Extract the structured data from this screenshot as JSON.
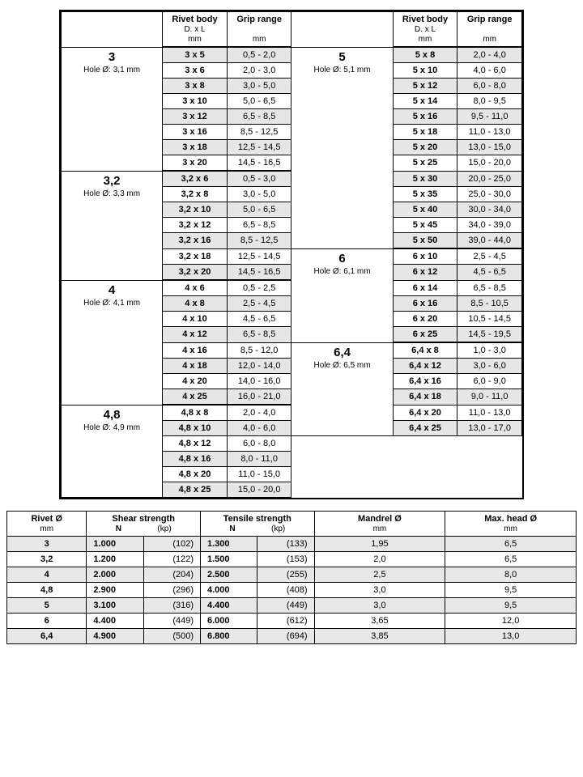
{
  "colors": {
    "bg": "#ffffff",
    "shade": "#e6e6e6",
    "border": "#000000",
    "text": "#000000"
  },
  "top": {
    "headers": {
      "rivet_body": "Rivet body",
      "rivet_body_sub1": "D. x L",
      "rivet_body_sub2": "mm",
      "grip": "Grip range",
      "grip_sub": "mm"
    },
    "right_blank": "",
    "left": [
      {
        "title": "3",
        "sub": "Hole Ø: 3,1 mm",
        "rows": [
          {
            "rb": "3 x 5",
            "gr": "0,5 - 2,0",
            "s": 1
          },
          {
            "rb": "3 x 6",
            "gr": "2,0 - 3,0",
            "s": 0
          },
          {
            "rb": "3 x 8",
            "gr": "3,0 - 5,0",
            "s": 1
          },
          {
            "rb": "3 x 10",
            "gr": "5,0 - 6,5",
            "s": 0
          },
          {
            "rb": "3 x 12",
            "gr": "6,5 - 8,5",
            "s": 1
          },
          {
            "rb": "3 x 16",
            "gr": "8,5 - 12,5",
            "s": 0
          },
          {
            "rb": "3 x 18",
            "gr": "12,5 - 14,5",
            "s": 1
          },
          {
            "rb": "3 x 20",
            "gr": "14,5 - 16,5",
            "s": 0
          }
        ]
      },
      {
        "title": "3,2",
        "sub": "Hole Ø: 3,3 mm",
        "rows": [
          {
            "rb": "3,2 x 6",
            "gr": "0,5 - 3,0",
            "s": 1
          },
          {
            "rb": "3,2 x 8",
            "gr": "3,0 - 5,0",
            "s": 0
          },
          {
            "rb": "3,2 x 10",
            "gr": "5,0 - 6,5",
            "s": 1
          },
          {
            "rb": "3,2 x 12",
            "gr": "6,5 - 8,5",
            "s": 0
          },
          {
            "rb": "3,2 x 16",
            "gr": "8,5 - 12,5",
            "s": 1
          },
          {
            "rb": "3,2 x 18",
            "gr": "12,5 - 14,5",
            "s": 0
          },
          {
            "rb": "3,2 x 20",
            "gr": "14,5 - 16,5",
            "s": 1
          }
        ]
      },
      {
        "title": "4",
        "sub": "Hole Ø: 4,1 mm",
        "rows": [
          {
            "rb": "4 x 6",
            "gr": "0,5 - 2,5",
            "s": 0
          },
          {
            "rb": "4 x 8",
            "gr": "2,5 - 4,5",
            "s": 1
          },
          {
            "rb": "4 x 10",
            "gr": "4,5 - 6,5",
            "s": 0
          },
          {
            "rb": "4 x 12",
            "gr": "6,5 - 8,5",
            "s": 1
          },
          {
            "rb": "4 x 16",
            "gr": "8,5 - 12,0",
            "s": 0
          },
          {
            "rb": "4 x 18",
            "gr": "12,0 - 14,0",
            "s": 1
          },
          {
            "rb": "4 x 20",
            "gr": "14,0 - 16,0",
            "s": 0
          },
          {
            "rb": "4 x 25",
            "gr": "16,0 - 21,0",
            "s": 1
          }
        ]
      },
      {
        "title": "4,8",
        "sub": "Hole Ø: 4,9 mm",
        "rows": [
          {
            "rb": "4,8 x 8",
            "gr": "2,0 - 4,0",
            "s": 0
          },
          {
            "rb": "4,8 x 10",
            "gr": "4,0 - 6,0",
            "s": 1
          },
          {
            "rb": "4,8 x 12",
            "gr": "6,0 - 8,0",
            "s": 0
          },
          {
            "rb": "4,8 x 16",
            "gr": "8,0 - 11,0",
            "s": 1
          },
          {
            "rb": "4,8 x 20",
            "gr": "11,0 - 15,0",
            "s": 0
          },
          {
            "rb": "4,8 x 25",
            "gr": "15,0 - 20,0",
            "s": 1
          }
        ]
      }
    ],
    "right": [
      {
        "title": "5",
        "sub": "Hole Ø: 5,1 mm",
        "rows": [
          {
            "rb": "5 x 8",
            "gr": "2,0 - 4,0",
            "s": 1
          },
          {
            "rb": "5 x 10",
            "gr": "4,0 - 6,0",
            "s": 0
          },
          {
            "rb": "5 x 12",
            "gr": "6,0 - 8,0",
            "s": 1
          },
          {
            "rb": "5 x 14",
            "gr": "8,0 - 9,5",
            "s": 0
          },
          {
            "rb": "5 x 16",
            "gr": "9,5 - 11,0",
            "s": 1
          },
          {
            "rb": "5 x 18",
            "gr": "11,0 - 13,0",
            "s": 0
          },
          {
            "rb": "5 x 20",
            "gr": "13,0 - 15,0",
            "s": 1
          },
          {
            "rb": "5 x 25",
            "gr": "15,0 - 20,0",
            "s": 0
          },
          {
            "rb": "5 x 30",
            "gr": "20,0 - 25,0",
            "s": 1
          },
          {
            "rb": "5 x 35",
            "gr": "25,0 - 30,0",
            "s": 0
          },
          {
            "rb": "5 x 40",
            "gr": "30,0 - 34,0",
            "s": 1
          },
          {
            "rb": "5 x 45",
            "gr": "34,0 - 39,0",
            "s": 0
          },
          {
            "rb": "5 x 50",
            "gr": "39,0 - 44,0",
            "s": 1
          }
        ]
      },
      {
        "title": "6",
        "sub": "Hole Ø: 6,1 mm",
        "rows": [
          {
            "rb": "6 x 10",
            "gr": "2,5 - 4,5",
            "s": 0
          },
          {
            "rb": "6 x 12",
            "gr": "4,5 - 6,5",
            "s": 1
          },
          {
            "rb": "6 x 14",
            "gr": "6,5 - 8,5",
            "s": 0
          },
          {
            "rb": "6 x 16",
            "gr": "8,5 - 10,5",
            "s": 1
          },
          {
            "rb": "6 x 20",
            "gr": "10,5 - 14,5",
            "s": 0
          },
          {
            "rb": "6 x 25",
            "gr": "14,5 - 19,5",
            "s": 1
          }
        ]
      },
      {
        "title": "6,4",
        "sub": "Hole Ø: 6,5 mm",
        "rows": [
          {
            "rb": "6,4 x 8",
            "gr": "1,0 - 3,0",
            "s": 0
          },
          {
            "rb": "6,4 x 12",
            "gr": "3,0 - 6,0",
            "s": 1
          },
          {
            "rb": "6,4 x 16",
            "gr": "6,0 - 9,0",
            "s": 0
          },
          {
            "rb": "6,4 x 18",
            "gr": "9,0 - 11,0",
            "s": 1
          },
          {
            "rb": "6,4 x 20",
            "gr": "11,0 - 13,0",
            "s": 0
          },
          {
            "rb": "6,4 x 25",
            "gr": "13,0 - 17,0",
            "s": 1
          }
        ]
      }
    ]
  },
  "spec": {
    "headers": {
      "rivet": "Rivet Ø",
      "rivet_sub": "mm",
      "shear": "Shear strength",
      "tensile": "Tensile strength",
      "n": "N",
      "kp": "(kp)",
      "mandrel": "Mandrel Ø",
      "mandrel_sub": "mm",
      "head": "Max. head Ø",
      "head_sub": "mm"
    },
    "rows": [
      {
        "d": "3",
        "sn": "1.000",
        "skp": "(102)",
        "tn": "1.300",
        "tkp": "(133)",
        "m": "1,95",
        "h": "6,5",
        "s": 1
      },
      {
        "d": "3,2",
        "sn": "1.200",
        "skp": "(122)",
        "tn": "1.500",
        "tkp": "(153)",
        "m": "2,0",
        "h": "6,5",
        "s": 0
      },
      {
        "d": "4",
        "sn": "2.000",
        "skp": "(204)",
        "tn": "2.500",
        "tkp": "(255)",
        "m": "2,5",
        "h": "8,0",
        "s": 1
      },
      {
        "d": "4,8",
        "sn": "2.900",
        "skp": "(296)",
        "tn": "4.000",
        "tkp": "(408)",
        "m": "3,0",
        "h": "9,5",
        "s": 0
      },
      {
        "d": "5",
        "sn": "3.100",
        "skp": "(316)",
        "tn": "4.400",
        "tkp": "(449)",
        "m": "3,0",
        "h": "9,5",
        "s": 1
      },
      {
        "d": "6",
        "sn": "4.400",
        "skp": "(449)",
        "tn": "6.000",
        "tkp": "(612)",
        "m": "3,65",
        "h": "12,0",
        "s": 0
      },
      {
        "d": "6,4",
        "sn": "4.900",
        "skp": "(500)",
        "tn": "6.800",
        "tkp": "(694)",
        "m": "3,85",
        "h": "13,0",
        "s": 1
      }
    ]
  }
}
